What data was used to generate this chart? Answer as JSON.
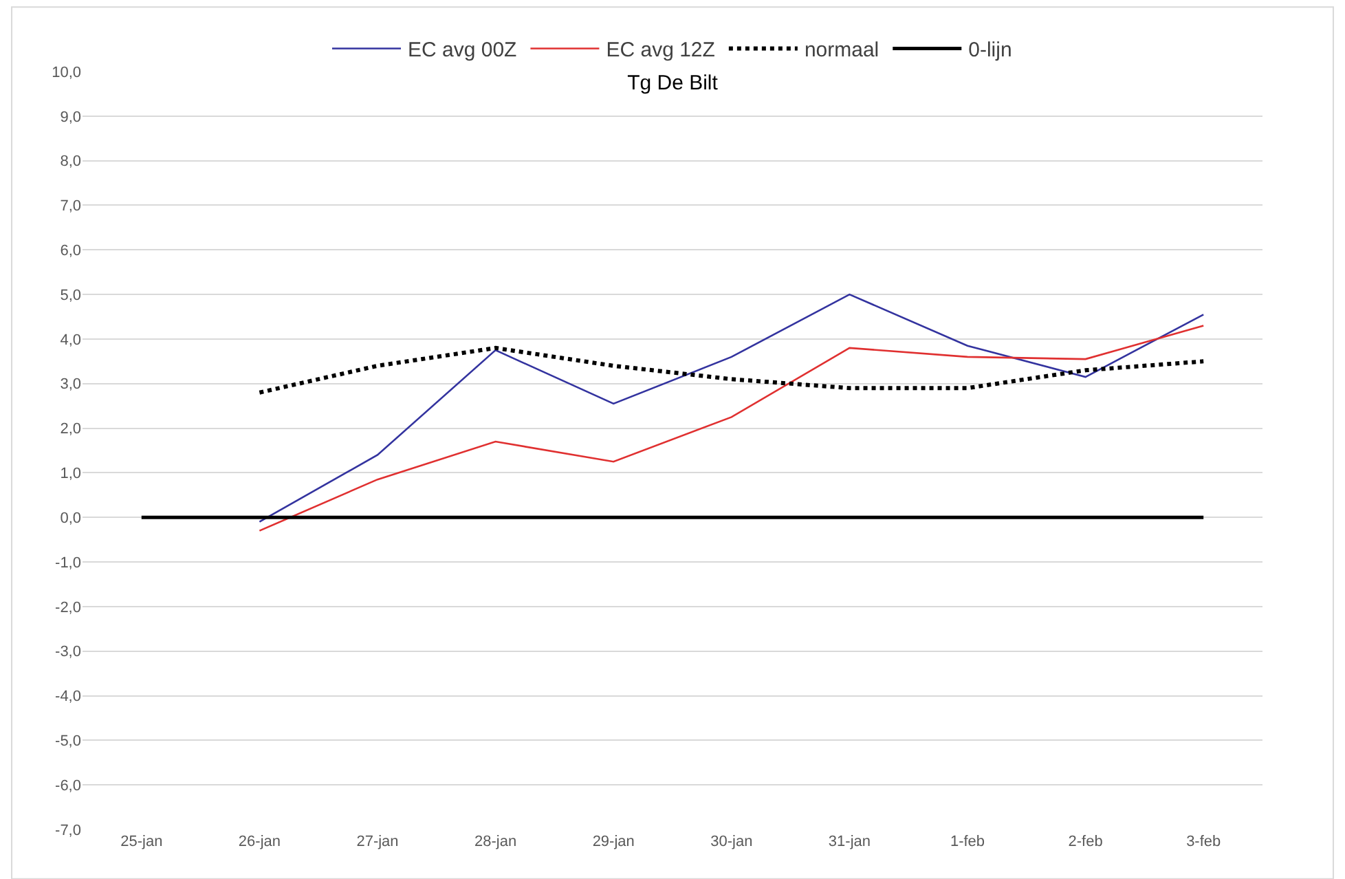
{
  "chart_data": {
    "type": "line",
    "title": "Tg De Bilt",
    "categories": [
      "25-jan",
      "26-jan",
      "27-jan",
      "28-jan",
      "29-jan",
      "30-jan",
      "31-jan",
      "1-feb",
      "2-feb",
      "3-feb"
    ],
    "series": [
      {
        "name": "EC avg 00Z",
        "color": "#33339f",
        "line_style": "solid",
        "values": [
          null,
          -0.1,
          1.4,
          3.75,
          2.55,
          3.6,
          5.0,
          3.85,
          3.15,
          4.55
        ]
      },
      {
        "name": "EC avg 12Z",
        "color": "#e03030",
        "line_style": "solid",
        "values": [
          null,
          -0.3,
          0.85,
          1.7,
          1.25,
          2.25,
          3.8,
          3.6,
          3.55,
          4.3
        ]
      },
      {
        "name": "normaal",
        "color": "#000000",
        "line_style": "dotted",
        "values": [
          null,
          2.8,
          3.4,
          3.8,
          3.4,
          3.1,
          2.9,
          2.9,
          3.3,
          3.5
        ]
      },
      {
        "name": "0-lijn",
        "color": "#000000",
        "line_style": "solid",
        "values": [
          0,
          0,
          0,
          0,
          0,
          0,
          0,
          0,
          0,
          0
        ]
      }
    ],
    "ylim": [
      -7,
      10
    ],
    "yticks": [
      {
        "value": -7,
        "label": "-7,0"
      },
      {
        "value": -6,
        "label": "-6,0"
      },
      {
        "value": -5,
        "label": "-5,0"
      },
      {
        "value": -4,
        "label": "-4,0"
      },
      {
        "value": -3,
        "label": "-3,0"
      },
      {
        "value": -2,
        "label": "-2,0"
      },
      {
        "value": -1,
        "label": "-1,0"
      },
      {
        "value": 0,
        "label": "0,0"
      },
      {
        "value": 1,
        "label": "1,0"
      },
      {
        "value": 2,
        "label": "2,0"
      },
      {
        "value": 3,
        "label": "3,0"
      },
      {
        "value": 4,
        "label": "4,0"
      },
      {
        "value": 5,
        "label": "5,0"
      },
      {
        "value": 6,
        "label": "6,0"
      },
      {
        "value": 7,
        "label": "7,0"
      },
      {
        "value": 8,
        "label": "8,0"
      },
      {
        "value": 9,
        "label": "9,0"
      },
      {
        "value": 10,
        "label": "10,0"
      }
    ],
    "grid": "y",
    "legend": "top",
    "marker": "none"
  }
}
